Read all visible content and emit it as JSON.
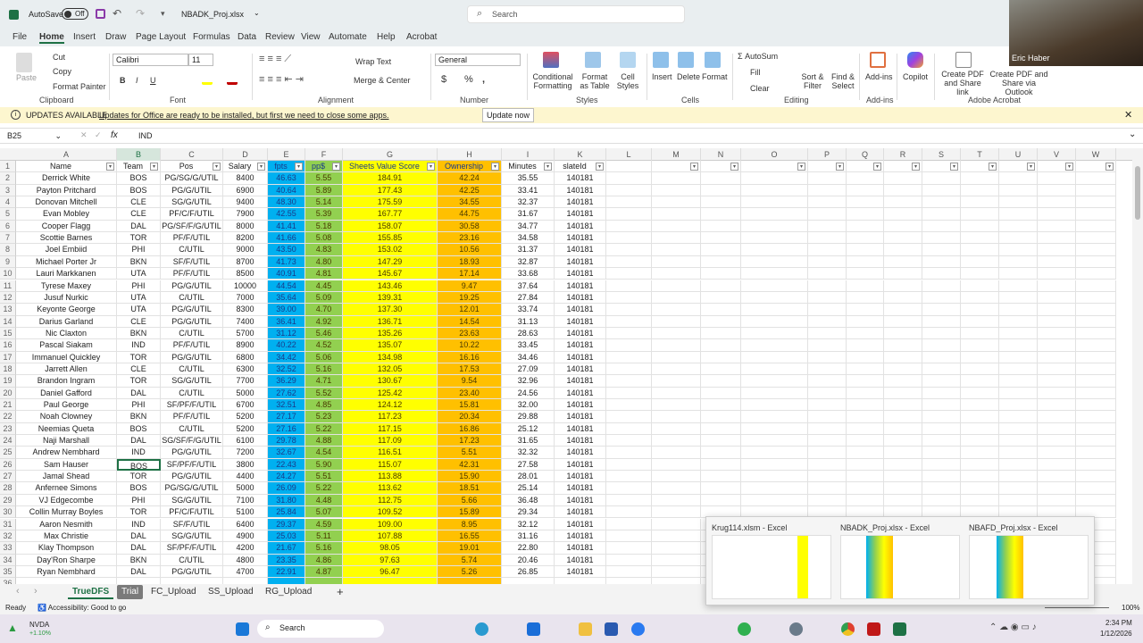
{
  "titlebar": {
    "autosave_label": "AutoSave",
    "autosave_state": "Off",
    "filename": "NBADK_Proj.xlsx",
    "search_placeholder": "Search"
  },
  "menu": [
    "File",
    "Home",
    "Insert",
    "Draw",
    "Page Layout",
    "Formulas",
    "Data",
    "Review",
    "View",
    "Automate",
    "Help",
    "Acrobat"
  ],
  "ribbon": {
    "clipboard": {
      "paste": "Paste",
      "cut": "Cut",
      "copy": "Copy",
      "format_painter": "Format Painter",
      "group": "Clipboard"
    },
    "font": {
      "name": "Calibri",
      "size": "11",
      "bold": "B",
      "italic": "I",
      "underline": "U",
      "group": "Font"
    },
    "alignment": {
      "wrap": "Wrap Text",
      "merge": "Merge & Center",
      "group": "Alignment"
    },
    "number": {
      "format": "General",
      "currency": "$",
      "percent": "%",
      "comma": ",",
      "group": "Number"
    },
    "styles": {
      "conditional": "Conditional Formatting",
      "format_table": "Format as Table",
      "cell_styles": "Cell Styles",
      "group": "Styles"
    },
    "cells": {
      "insert": "Insert",
      "delete": "Delete",
      "format": "Format",
      "group": "Cells"
    },
    "editing": {
      "autosum": "AutoSum",
      "fill": "Fill",
      "clear": "Clear",
      "sort": "Sort & Filter",
      "find": "Find & Select",
      "group": "Editing"
    },
    "addins": {
      "label": "Add-ins",
      "group": "Add-ins"
    },
    "copilot": {
      "label": "Copilot"
    },
    "acrobat": {
      "create_pdf_link": "Create PDF and Share link",
      "create_pdf_outlook": "Create PDF and Share via Outlook",
      "group": "Adobe Acrobat"
    }
  },
  "update_bar": {
    "title": "UPDATES AVAILABLE",
    "message": "Updates for Office are ready to be installed, but first we need to close some apps.",
    "button": "Update now"
  },
  "formula_bar": {
    "name_box": "B25",
    "fx": "fx",
    "value": "IND"
  },
  "columns": [
    "A",
    "B",
    "C",
    "D",
    "E",
    "F",
    "G",
    "H",
    "I",
    "K",
    "L",
    "M",
    "N",
    "O",
    "P",
    "Q",
    "R",
    "S",
    "T",
    "U",
    "V",
    "W"
  ],
  "colors": {
    "fpts": "#00b0f0",
    "pps": "#92d050",
    "value_score": "#ffff00",
    "ownership": "#ffc000",
    "accent": "#1e7145"
  },
  "headers": [
    "Name",
    "Team",
    "Pos",
    "Salary",
    "fpts",
    "pp$",
    "Sheets Value Score",
    "Ownership",
    "Minutes",
    "slateId"
  ],
  "selected_cell": "B25",
  "rows": [
    [
      "Derrick White",
      "BOS",
      "PG/SG/G/UTIL",
      "8400",
      "46.63",
      "5.55",
      "184.91",
      "42.24",
      "35.55",
      "140181"
    ],
    [
      "Payton Pritchard",
      "BOS",
      "PG/G/UTIL",
      "6900",
      "40.64",
      "5.89",
      "177.43",
      "42.25",
      "33.41",
      "140181"
    ],
    [
      "Donovan Mitchell",
      "CLE",
      "SG/G/UTIL",
      "9400",
      "48.30",
      "5.14",
      "175.59",
      "34.55",
      "32.37",
      "140181"
    ],
    [
      "Evan Mobley",
      "CLE",
      "PF/C/F/UTIL",
      "7900",
      "42.55",
      "5.39",
      "167.77",
      "44.75",
      "31.67",
      "140181"
    ],
    [
      "Cooper Flagg",
      "DAL",
      "PG/SF/F/G/UTIL",
      "8000",
      "41.41",
      "5.18",
      "158.07",
      "30.58",
      "34.77",
      "140181"
    ],
    [
      "Scottie Barnes",
      "TOR",
      "PF/F/UTIL",
      "8200",
      "41.66",
      "5.08",
      "155.85",
      "23.16",
      "34.58",
      "140181"
    ],
    [
      "Joel Embiid",
      "PHI",
      "C/UTIL",
      "9000",
      "43.50",
      "4.83",
      "153.02",
      "10.56",
      "31.37",
      "140181"
    ],
    [
      "Michael Porter Jr",
      "BKN",
      "SF/F/UTIL",
      "8700",
      "41.73",
      "4.80",
      "147.29",
      "18.93",
      "32.87",
      "140181"
    ],
    [
      "Lauri Markkanen",
      "UTA",
      "PF/F/UTIL",
      "8500",
      "40.91",
      "4.81",
      "145.67",
      "17.14",
      "33.68",
      "140181"
    ],
    [
      "Tyrese Maxey",
      "PHI",
      "PG/G/UTIL",
      "10000",
      "44.54",
      "4.45",
      "143.46",
      "9.47",
      "37.64",
      "140181"
    ],
    [
      "Jusuf Nurkic",
      "UTA",
      "C/UTIL",
      "7000",
      "35.64",
      "5.09",
      "139.31",
      "19.25",
      "27.84",
      "140181"
    ],
    [
      "Keyonte George",
      "UTA",
      "PG/G/UTIL",
      "8300",
      "39.00",
      "4.70",
      "137.30",
      "12.01",
      "33.74",
      "140181"
    ],
    [
      "Darius Garland",
      "CLE",
      "PG/G/UTIL",
      "7400",
      "36.41",
      "4.92",
      "136.71",
      "14.54",
      "31.13",
      "140181"
    ],
    [
      "Nic Claxton",
      "BKN",
      "C/UTIL",
      "5700",
      "31.12",
      "5.46",
      "135.26",
      "23.63",
      "28.63",
      "140181"
    ],
    [
      "Pascal Siakam",
      "IND",
      "PF/F/UTIL",
      "8900",
      "40.22",
      "4.52",
      "135.07",
      "10.22",
      "33.45",
      "140181"
    ],
    [
      "Immanuel Quickley",
      "TOR",
      "PG/G/UTIL",
      "6800",
      "34.42",
      "5.06",
      "134.98",
      "16.16",
      "34.46",
      "140181"
    ],
    [
      "Jarrett Allen",
      "CLE",
      "C/UTIL",
      "6300",
      "32.52",
      "5.16",
      "132.05",
      "17.53",
      "27.09",
      "140181"
    ],
    [
      "Brandon Ingram",
      "TOR",
      "SG/G/UTIL",
      "7700",
      "36.29",
      "4.71",
      "130.67",
      "9.54",
      "32.96",
      "140181"
    ],
    [
      "Daniel Gafford",
      "DAL",
      "C/UTIL",
      "5000",
      "27.62",
      "5.52",
      "125.42",
      "23.40",
      "24.56",
      "140181"
    ],
    [
      "Paul George",
      "PHI",
      "SF/PF/F/UTIL",
      "6700",
      "32.51",
      "4.85",
      "124.12",
      "15.81",
      "32.00",
      "140181"
    ],
    [
      "Noah Clowney",
      "BKN",
      "PF/F/UTIL",
      "5200",
      "27.17",
      "5.23",
      "117.23",
      "20.34",
      "29.88",
      "140181"
    ],
    [
      "Neemias Queta",
      "BOS",
      "C/UTIL",
      "5200",
      "27.16",
      "5.22",
      "117.15",
      "16.86",
      "25.12",
      "140181"
    ],
    [
      "Naji Marshall",
      "DAL",
      "SG/SF/F/G/UTIL",
      "6100",
      "29.78",
      "4.88",
      "117.09",
      "17.23",
      "31.65",
      "140181"
    ],
    [
      "Andrew Nembhard",
      "IND",
      "PG/G/UTIL",
      "7200",
      "32.67",
      "4.54",
      "116.51",
      "5.51",
      "32.32",
      "140181"
    ],
    [
      "Sam Hauser",
      "BOS",
      "SF/PF/F/UTIL",
      "3800",
      "22.43",
      "5.90",
      "115.07",
      "42.31",
      "27.58",
      "140181"
    ],
    [
      "Jamal Shead",
      "TOR",
      "PG/G/UTIL",
      "4400",
      "24.27",
      "5.51",
      "113.88",
      "15.90",
      "28.01",
      "140181"
    ],
    [
      "Anfernee Simons",
      "BOS",
      "PG/SG/G/UTIL",
      "5000",
      "26.09",
      "5.22",
      "113.62",
      "18.51",
      "25.14",
      "140181"
    ],
    [
      "VJ Edgecombe",
      "PHI",
      "SG/G/UTIL",
      "7100",
      "31.80",
      "4.48",
      "112.75",
      "5.66",
      "36.48",
      "140181"
    ],
    [
      "Collin Murray Boyles",
      "TOR",
      "PF/C/F/UTIL",
      "5100",
      "25.84",
      "5.07",
      "109.52",
      "15.89",
      "29.34",
      "140181"
    ],
    [
      "Aaron Nesmith",
      "IND",
      "SF/F/UTIL",
      "6400",
      "29.37",
      "4.59",
      "109.00",
      "8.95",
      "32.12",
      "140181"
    ],
    [
      "Max Christie",
      "DAL",
      "SG/G/UTIL",
      "4900",
      "25.03",
      "5.11",
      "107.88",
      "16.55",
      "31.16",
      "140181"
    ],
    [
      "Klay Thompson",
      "DAL",
      "SF/PF/F/UTIL",
      "4200",
      "21.67",
      "5.16",
      "98.05",
      "19.01",
      "22.80",
      "140181"
    ],
    [
      "Day'Ron Sharpe",
      "BKN",
      "C/UTIL",
      "4800",
      "23.35",
      "4.86",
      "97.63",
      "5.74",
      "20.46",
      "140181"
    ],
    [
      "Ryan Nembhard",
      "DAL",
      "PG/G/UTIL",
      "4700",
      "22.91",
      "4.87",
      "96.47",
      "5.26",
      "26.85",
      "140181"
    ]
  ],
  "sheet_tabs": [
    "TrueDFS",
    "Trial",
    "FC_Upload",
    "SS_Upload",
    "RG_Upload"
  ],
  "active_tab": "Trial",
  "status": {
    "ready": "Ready",
    "accessibility": "Accessibility: Good to go",
    "zoom": "100%"
  },
  "previews": [
    "Krug114.xlsm - Excel",
    "NBADK_Proj.xlsx - Excel",
    "NBAFD_Proj.xlsx - Excel"
  ],
  "webcam": {
    "name": "Eric Haber"
  },
  "taskbar": {
    "stock_name": "NVDA",
    "stock_change": "+1.10%",
    "search": "Search",
    "time": "2:34 PM",
    "date": "1/12/2026"
  }
}
